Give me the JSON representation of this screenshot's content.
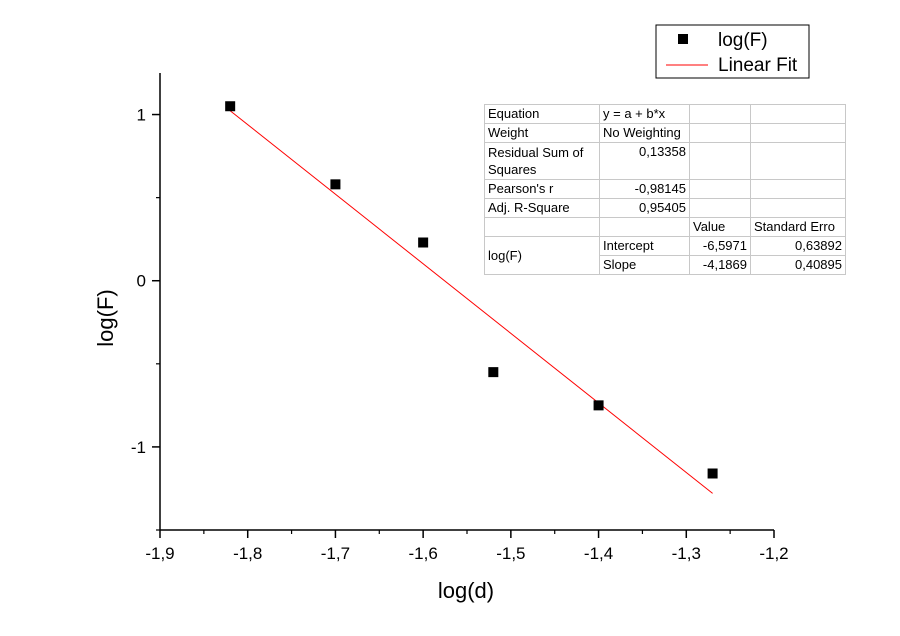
{
  "chart_data": {
    "type": "scatter",
    "xlabel": "log(d)",
    "ylabel": "log(F)",
    "xlim": [
      -1.9,
      -1.2
    ],
    "ylim": [
      -1.5,
      1.25
    ],
    "x_major_ticks": [
      -1.9,
      -1.8,
      -1.7,
      -1.6,
      -1.5,
      -1.4,
      -1.3,
      -1.2
    ],
    "x_tick_labels": [
      "-1,9",
      "-1,8",
      "-1,7",
      "-1,6",
      "-1,5",
      "-1,4",
      "-1,3",
      "-1,2"
    ],
    "x_minor_ticks": [
      -1.85,
      -1.75,
      -1.65,
      -1.55,
      -1.45,
      -1.35,
      -1.25
    ],
    "y_major_ticks": [
      -1,
      0,
      1
    ],
    "y_tick_labels": [
      "-1",
      "0",
      "1"
    ],
    "y_minor_ticks": [
      -1.5,
      -0.5,
      0.5
    ],
    "series": [
      {
        "name": "log(F)",
        "kind": "scatter",
        "marker": "square",
        "color": "#000000",
        "x": [
          -1.82,
          -1.7,
          -1.6,
          -1.52,
          -1.4,
          -1.27
        ],
        "y": [
          1.05,
          0.58,
          0.23,
          -0.55,
          -0.75,
          -1.16
        ]
      },
      {
        "name": "Linear Fit",
        "kind": "line",
        "color": "#ff0000",
        "intercept": -6.5971,
        "slope": -4.1869,
        "x_range": [
          -1.82,
          -1.27
        ]
      }
    ],
    "legend": {
      "position": "top-right",
      "entries": [
        "log(F)",
        "Linear Fit"
      ]
    },
    "stats_table": {
      "equation_label": "Equation",
      "equation_value": "y = a + b*x",
      "weight_label": "Weight",
      "weight_value": "No Weighting",
      "rss_label": "Residual Sum of Squares",
      "rss_value": "0,13358",
      "pearson_label": "Pearson's r",
      "pearson_value": "-0,98145",
      "adjr_label": "Adj. R-Square",
      "adjr_value": "0,95405",
      "value_header": "Value",
      "stderr_header": "Standard Erro",
      "row_group_label": "log(F)",
      "intercept_label": "Intercept",
      "intercept_value": "-6,5971",
      "intercept_stderr": "0,63892",
      "slope_label": "Slope",
      "slope_value": "-4,1869",
      "slope_stderr": "0,40895"
    }
  }
}
